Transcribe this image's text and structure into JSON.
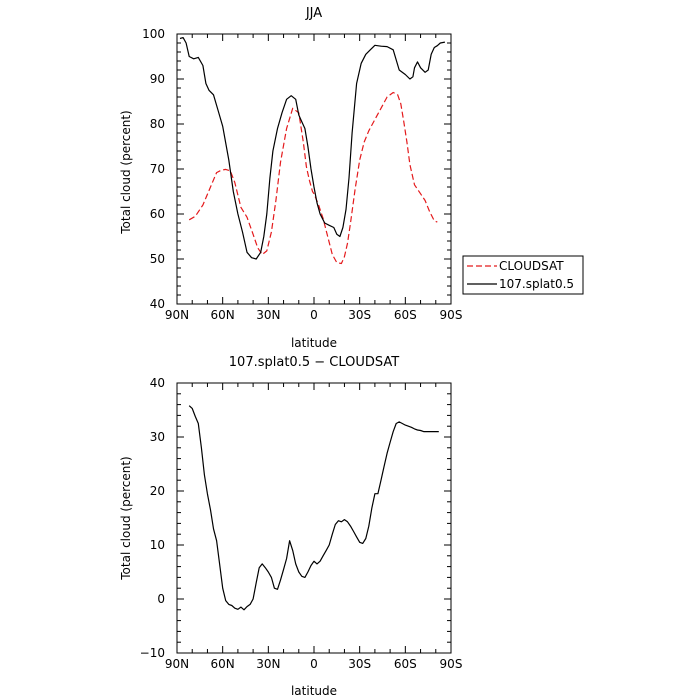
{
  "chart_data": [
    {
      "type": "line",
      "title": "JJA",
      "xlabel": "latitude",
      "ylabel": "Total cloud (percent)",
      "xlim": [
        90,
        -90
      ],
      "ylim": [
        40,
        100
      ],
      "x_ticks": [
        90,
        60,
        30,
        0,
        -30,
        -60,
        -90
      ],
      "x_tick_labels": [
        "90N",
        "60N",
        "30N",
        "0",
        "30S",
        "60S",
        "90S"
      ],
      "y_ticks": [
        40,
        50,
        60,
        70,
        80,
        90,
        100
      ],
      "y_tick_labels": [
        "40",
        "50",
        "60",
        "70",
        "80",
        "90",
        "100"
      ],
      "legend_position": "right",
      "series": [
        {
          "name": "CLOUDSAT",
          "color": "#e41a1c",
          "style": "dashed",
          "x": [
            82,
            78,
            73,
            68,
            64,
            61,
            58,
            55,
            52,
            48,
            44,
            40,
            37,
            34,
            31,
            28,
            25,
            22,
            18,
            14,
            10,
            7,
            5,
            3,
            1,
            0,
            -3,
            -6,
            -9,
            -12,
            -15,
            -18,
            -20,
            -22,
            -24,
            -27,
            -30,
            -33,
            -36,
            -40,
            -44,
            -48,
            -52,
            -55,
            -57,
            -59,
            -61,
            -63,
            -66,
            -70,
            -73,
            -76,
            -79,
            -81
          ],
          "y": [
            58.7,
            59.5,
            62,
            66,
            69.2,
            69.7,
            69.9,
            69.6,
            67,
            61.5,
            59.3,
            55.5,
            52.5,
            51,
            51.8,
            56,
            63,
            71.5,
            79,
            83.5,
            82.5,
            76,
            70.5,
            67.5,
            65,
            64.5,
            62,
            59,
            55,
            51,
            49.2,
            49,
            50.5,
            53.5,
            58,
            65.5,
            72,
            76,
            78.5,
            81,
            83.5,
            86,
            87,
            86.5,
            84.5,
            80.5,
            76,
            71,
            66.5,
            64.5,
            63,
            60.5,
            58.5,
            58.2
          ]
        },
        {
          "name": "107.splat0.5",
          "color": "#000000",
          "style": "solid",
          "x": [
            88,
            86,
            84,
            82,
            79,
            76,
            73,
            71,
            69,
            66,
            63,
            60,
            56,
            53,
            50,
            47,
            44,
            41,
            38,
            35,
            33,
            31,
            29,
            27,
            24,
            21,
            18,
            15,
            12,
            10,
            8,
            6,
            4,
            2,
            0,
            -2,
            -4,
            -7,
            -10,
            -13,
            -15,
            -17,
            -19,
            -21,
            -23,
            -25,
            -28,
            -31,
            -34,
            -37,
            -40,
            -44,
            -48,
            -52,
            -56,
            -60,
            -63,
            -65,
            -66,
            -68,
            -70,
            -73,
            -75,
            -77,
            -79,
            -81,
            -83,
            -86
          ],
          "y": [
            99,
            99.2,
            98,
            95,
            94.5,
            94.8,
            93,
            89,
            87.5,
            86.5,
            83,
            79.5,
            72,
            65,
            60,
            56,
            51.5,
            50.3,
            50,
            51.5,
            55,
            60,
            68,
            74,
            79,
            82.5,
            85.5,
            86.3,
            85.5,
            82,
            80.5,
            79,
            75,
            70,
            66,
            62.5,
            60,
            58,
            57.5,
            57,
            55.5,
            55,
            57,
            61,
            68,
            78,
            89,
            93.5,
            95.5,
            96.5,
            97.5,
            97.3,
            97.2,
            96.5,
            92,
            91,
            90,
            90.5,
            92.5,
            93.8,
            92.5,
            91.5,
            92,
            95.5,
            97,
            97.4,
            98,
            98.2
          ]
        }
      ]
    },
    {
      "type": "line",
      "title": "107.splat0.5 − CLOUDSAT",
      "xlabel": "latitude",
      "ylabel": "Total cloud (percent)",
      "xlim": [
        90,
        -90
      ],
      "ylim": [
        -10,
        40
      ],
      "x_ticks": [
        90,
        60,
        30,
        0,
        -30,
        -60,
        -90
      ],
      "x_tick_labels": [
        "90N",
        "60N",
        "30N",
        "0",
        "30S",
        "60S",
        "90S"
      ],
      "y_ticks": [
        -10,
        0,
        10,
        20,
        30,
        40
      ],
      "y_tick_labels": [
        "−10",
        "0",
        "10",
        "20",
        "30",
        "40"
      ],
      "series": [
        {
          "color": "#000000",
          "style": "solid",
          "x": [
            82,
            80,
            78,
            76,
            74,
            72,
            70,
            68,
            66,
            64,
            62,
            60,
            58,
            56,
            54,
            52,
            50,
            48,
            46,
            44,
            42,
            40,
            38,
            36,
            34,
            32,
            30,
            28,
            26,
            24,
            22,
            20,
            18,
            16,
            14,
            12,
            10,
            8,
            6,
            4,
            2,
            0,
            -2,
            -4,
            -6,
            -8,
            -10,
            -12,
            -14,
            -16,
            -18,
            -20,
            -22,
            -24,
            -26,
            -28,
            -30,
            -32,
            -34,
            -36,
            -38,
            -40,
            -42,
            -44,
            -46,
            -48,
            -50,
            -52,
            -54,
            -56,
            -58,
            -60,
            -62,
            -64,
            -66,
            -68,
            -70,
            -72,
            -74,
            -76,
            -78,
            -80,
            -82
          ],
          "y": [
            35.8,
            35.3,
            33.8,
            32.5,
            28,
            23,
            19.5,
            16.5,
            13,
            10.8,
            6.5,
            2,
            -0.3,
            -1,
            -1.2,
            -1.7,
            -1.9,
            -1.5,
            -2,
            -1.4,
            -1,
            0,
            3,
            5.8,
            6.5,
            5.8,
            5,
            4,
            2,
            1.8,
            3.5,
            5.5,
            7.5,
            10.8,
            9,
            6.5,
            5,
            4.2,
            4,
            5,
            6.2,
            7,
            6.5,
            7,
            8,
            9,
            10,
            12,
            13.8,
            14.5,
            14.3,
            14.7,
            14.3,
            13.5,
            12.5,
            11.5,
            10.5,
            10.3,
            11.2,
            13.5,
            16.8,
            19.5,
            19.5,
            22,
            24.5,
            27,
            29,
            31,
            32.5,
            32.8,
            32.5,
            32.2,
            32,
            31.8,
            31.5,
            31.3,
            31.2,
            31,
            31,
            31,
            31,
            31,
            31
          ]
        }
      ]
    }
  ]
}
